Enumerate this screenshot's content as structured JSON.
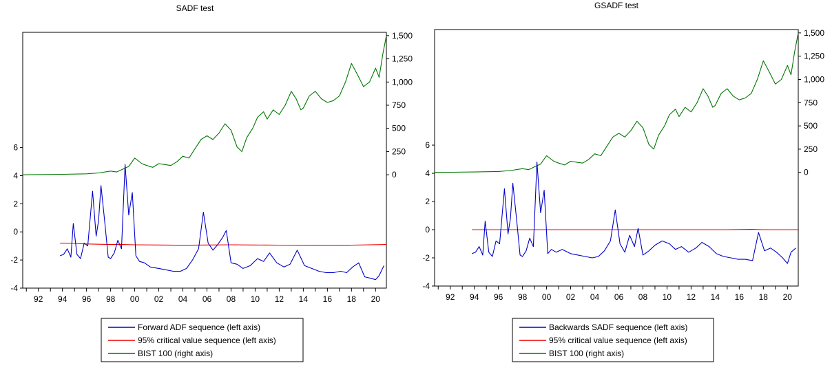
{
  "chart_data": [
    {
      "type": "line",
      "title": "SADF test",
      "x_ticks": [
        "92",
        "94",
        "96",
        "98",
        "00",
        "02",
        "04",
        "06",
        "08",
        "10",
        "12",
        "14",
        "16",
        "18",
        "20"
      ],
      "xlim": [
        1990.7,
        2020.9
      ],
      "left_axis": {
        "ticks": [
          "-4",
          "-2",
          "0",
          "2",
          "4",
          "6"
        ],
        "ylim": [
          -4,
          14.2
        ]
      },
      "right_axis": {
        "ticks": [
          "0",
          "250",
          "500",
          "750",
          "1,000",
          "1,250",
          "1,500"
        ],
        "ylim": [
          -1222,
          1536
        ]
      },
      "legend": {
        "placement": "bottom-center",
        "entries": [
          "Forward ADF sequence (left axis)",
          "95% critical value sequence (left axis)",
          "BIST 100 (right axis)"
        ]
      },
      "series": [
        {
          "name": "Forward ADF sequence (left axis)",
          "axis": "left",
          "color": "#0000cc",
          "x": [
            1993.8,
            1994.1,
            1994.4,
            1994.7,
            1994.9,
            1995.2,
            1995.5,
            1995.8,
            1996.1,
            1996.5,
            1996.8,
            1997.0,
            1997.2,
            1997.5,
            1997.8,
            1998.0,
            1998.3,
            1998.6,
            1998.9,
            1999.2,
            1999.5,
            1999.8,
            2000.1,
            2000.4,
            2000.8,
            2001.3,
            2002.0,
            2002.6,
            2003.2,
            2003.8,
            2004.3,
            2004.8,
            2005.3,
            2005.7,
            2006.1,
            2006.5,
            2006.9,
            2007.3,
            2007.6,
            2008.0,
            2008.5,
            2009.0,
            2009.6,
            2010.2,
            2010.7,
            2011.2,
            2011.8,
            2012.4,
            2012.9,
            2013.5,
            2014.1,
            2014.7,
            2015.3,
            2015.9,
            2016.5,
            2017.1,
            2017.6,
            2018.1,
            2018.6,
            2019.1,
            2019.6,
            2020.0,
            2020.3,
            2020.7
          ],
          "values": [
            -1.7,
            -1.6,
            -1.2,
            -1.8,
            0.6,
            -1.6,
            -1.9,
            -0.8,
            -1.0,
            2.9,
            -0.3,
            0.8,
            3.3,
            0.8,
            -1.8,
            -1.9,
            -1.5,
            -0.6,
            -1.2,
            4.8,
            1.2,
            2.8,
            -1.7,
            -2.1,
            -2.2,
            -2.5,
            -2.6,
            -2.7,
            -2.8,
            -2.8,
            -2.6,
            -2.0,
            -1.2,
            1.4,
            -0.8,
            -1.3,
            -0.9,
            -0.4,
            0.1,
            -2.2,
            -2.3,
            -2.6,
            -2.4,
            -1.9,
            -2.1,
            -1.5,
            -2.2,
            -2.5,
            -2.3,
            -1.3,
            -2.4,
            -2.6,
            -2.8,
            -2.9,
            -2.9,
            -2.8,
            -2.9,
            -2.5,
            -2.2,
            -3.2,
            -3.3,
            -3.4,
            -3.1,
            -2.4
          ]
        },
        {
          "name": "95% critical value sequence (left axis)",
          "axis": "left",
          "color": "#ee0000",
          "x": [
            1993.8,
            1995.0,
            1996.0,
            1997.0,
            1998.0,
            1999.0,
            2000.0,
            2002.0,
            2004.0,
            2006.0,
            2008.0,
            2010.0,
            2012.0,
            2014.0,
            2016.0,
            2018.0,
            2020.9
          ],
          "values": [
            -0.8,
            -0.82,
            -0.86,
            -0.88,
            -0.9,
            -0.9,
            -0.92,
            -0.93,
            -0.95,
            -0.93,
            -0.92,
            -0.93,
            -0.94,
            -0.95,
            -0.96,
            -0.94,
            -0.9
          ]
        },
        {
          "name": "BIST 100 (right axis)",
          "axis": "right",
          "color": "#007700",
          "x": [
            1990.7,
            1992.0,
            1994.0,
            1996.0,
            1997.0,
            1998.0,
            1998.5,
            1999.0,
            1999.5,
            2000.0,
            2000.6,
            2001.0,
            2001.5,
            2002.0,
            2002.5,
            2003.0,
            2003.5,
            2004.0,
            2004.5,
            2005.0,
            2005.5,
            2006.0,
            2006.5,
            2007.0,
            2007.5,
            2008.0,
            2008.5,
            2008.9,
            2009.3,
            2009.8,
            2010.2,
            2010.7,
            2011.0,
            2011.5,
            2012.0,
            2012.5,
            2013.0,
            2013.4,
            2013.8,
            2014.0,
            2014.5,
            2015.0,
            2015.5,
            2016.0,
            2016.5,
            2017.0,
            2017.5,
            2018.0,
            2018.5,
            2019.0,
            2019.5,
            2020.0,
            2020.3,
            2020.6,
            2020.9
          ],
          "values": [
            0,
            2,
            5,
            10,
            20,
            40,
            30,
            60,
            90,
            180,
            120,
            100,
            80,
            120,
            110,
            100,
            140,
            200,
            180,
            280,
            380,
            420,
            380,
            450,
            550,
            480,
            300,
            250,
            400,
            500,
            620,
            680,
            600,
            700,
            650,
            750,
            900,
            820,
            700,
            720,
            850,
            900,
            820,
            780,
            800,
            850,
            1000,
            1200,
            1080,
            950,
            1000,
            1150,
            1050,
            1300,
            1500
          ]
        }
      ]
    },
    {
      "type": "line",
      "title": "GSADF test",
      "x_ticks": [
        "92",
        "94",
        "96",
        "98",
        "00",
        "02",
        "04",
        "06",
        "08",
        "10",
        "12",
        "14",
        "16",
        "18",
        "20"
      ],
      "xlim": [
        1990.7,
        2020.9
      ],
      "left_axis": {
        "ticks": [
          "-4",
          "-2",
          "0",
          "2",
          "4",
          "6"
        ],
        "ylim": [
          -4,
          14.2
        ]
      },
      "right_axis": {
        "ticks": [
          "0",
          "250",
          "500",
          "750",
          "1,000",
          "1,250",
          "1,500"
        ],
        "ylim": [
          -1222,
          1536
        ]
      },
      "legend": {
        "placement": "bottom-center",
        "entries": [
          "Backwards SADF sequence (left axis)",
          "95% critical value sequence (left axis)",
          "BIST 100 (right axis)"
        ]
      },
      "series": [
        {
          "name": "Backwards SADF sequence (left axis)",
          "axis": "left",
          "color": "#0000cc",
          "x": [
            1993.8,
            1994.1,
            1994.4,
            1994.7,
            1994.9,
            1995.2,
            1995.5,
            1995.8,
            1996.1,
            1996.5,
            1996.8,
            1997.0,
            1997.2,
            1997.5,
            1997.8,
            1998.0,
            1998.3,
            1998.6,
            1998.9,
            1999.2,
            1999.5,
            1999.8,
            2000.1,
            2000.4,
            2000.8,
            2001.3,
            2002.0,
            2002.6,
            2003.2,
            2003.8,
            2004.3,
            2004.8,
            2005.3,
            2005.7,
            2006.1,
            2006.5,
            2006.9,
            2007.3,
            2007.6,
            2008.0,
            2008.5,
            2009.0,
            2009.6,
            2010.2,
            2010.7,
            2011.2,
            2011.8,
            2012.4,
            2012.9,
            2013.5,
            2014.1,
            2014.7,
            2015.3,
            2015.9,
            2016.5,
            2017.1,
            2017.6,
            2018.1,
            2018.6,
            2019.1,
            2019.6,
            2020.0,
            2020.3,
            2020.7
          ],
          "values": [
            -1.7,
            -1.6,
            -1.2,
            -1.8,
            0.6,
            -1.6,
            -1.9,
            -0.8,
            -1.0,
            2.9,
            -0.3,
            0.8,
            3.3,
            0.8,
            -1.8,
            -1.9,
            -1.5,
            -0.6,
            -1.2,
            4.8,
            1.2,
            2.8,
            -1.7,
            -1.4,
            -1.6,
            -1.4,
            -1.7,
            -1.8,
            -1.9,
            -2.0,
            -1.9,
            -1.5,
            -0.8,
            1.4,
            -1.0,
            -1.6,
            -0.4,
            -1.2,
            0.1,
            -1.8,
            -1.5,
            -1.1,
            -0.8,
            -1.0,
            -1.4,
            -1.2,
            -1.6,
            -1.3,
            -0.9,
            -1.2,
            -1.7,
            -1.9,
            -2.0,
            -2.1,
            -2.1,
            -2.2,
            -0.2,
            -1.5,
            -1.3,
            -1.6,
            -2.0,
            -2.4,
            -1.6,
            -1.3
          ]
        },
        {
          "name": "95% critical value sequence (left axis)",
          "axis": "left",
          "color": "#ee0000",
          "x": [
            1993.8,
            2000.0,
            2005.0,
            2010.0,
            2015.0,
            2017.0,
            2018.0,
            2020.9
          ],
          "values": [
            0,
            0,
            0,
            0,
            0,
            0.02,
            0,
            0
          ]
        },
        {
          "name": "BIST 100 (right axis)",
          "axis": "right",
          "color": "#007700",
          "x": [
            1990.7,
            1992.0,
            1994.0,
            1996.0,
            1997.0,
            1998.0,
            1998.5,
            1999.0,
            1999.5,
            2000.0,
            2000.6,
            2001.0,
            2001.5,
            2002.0,
            2002.5,
            2003.0,
            2003.5,
            2004.0,
            2004.5,
            2005.0,
            2005.5,
            2006.0,
            2006.5,
            2007.0,
            2007.5,
            2008.0,
            2008.5,
            2008.9,
            2009.3,
            2009.8,
            2010.2,
            2010.7,
            2011.0,
            2011.5,
            2012.0,
            2012.5,
            2013.0,
            2013.4,
            2013.8,
            2014.0,
            2014.5,
            2015.0,
            2015.5,
            2016.0,
            2016.5,
            2017.0,
            2017.5,
            2018.0,
            2018.5,
            2019.0,
            2019.5,
            2020.0,
            2020.3,
            2020.6,
            2020.9
          ],
          "values": [
            0,
            2,
            5,
            10,
            20,
            40,
            30,
            60,
            90,
            180,
            120,
            100,
            80,
            120,
            110,
            100,
            140,
            200,
            180,
            280,
            380,
            420,
            380,
            450,
            550,
            480,
            300,
            250,
            400,
            500,
            620,
            680,
            600,
            700,
            650,
            750,
            900,
            820,
            700,
            720,
            850,
            900,
            820,
            780,
            800,
            850,
            1000,
            1200,
            1080,
            950,
            1000,
            1150,
            1050,
            1300,
            1500
          ]
        }
      ]
    }
  ]
}
